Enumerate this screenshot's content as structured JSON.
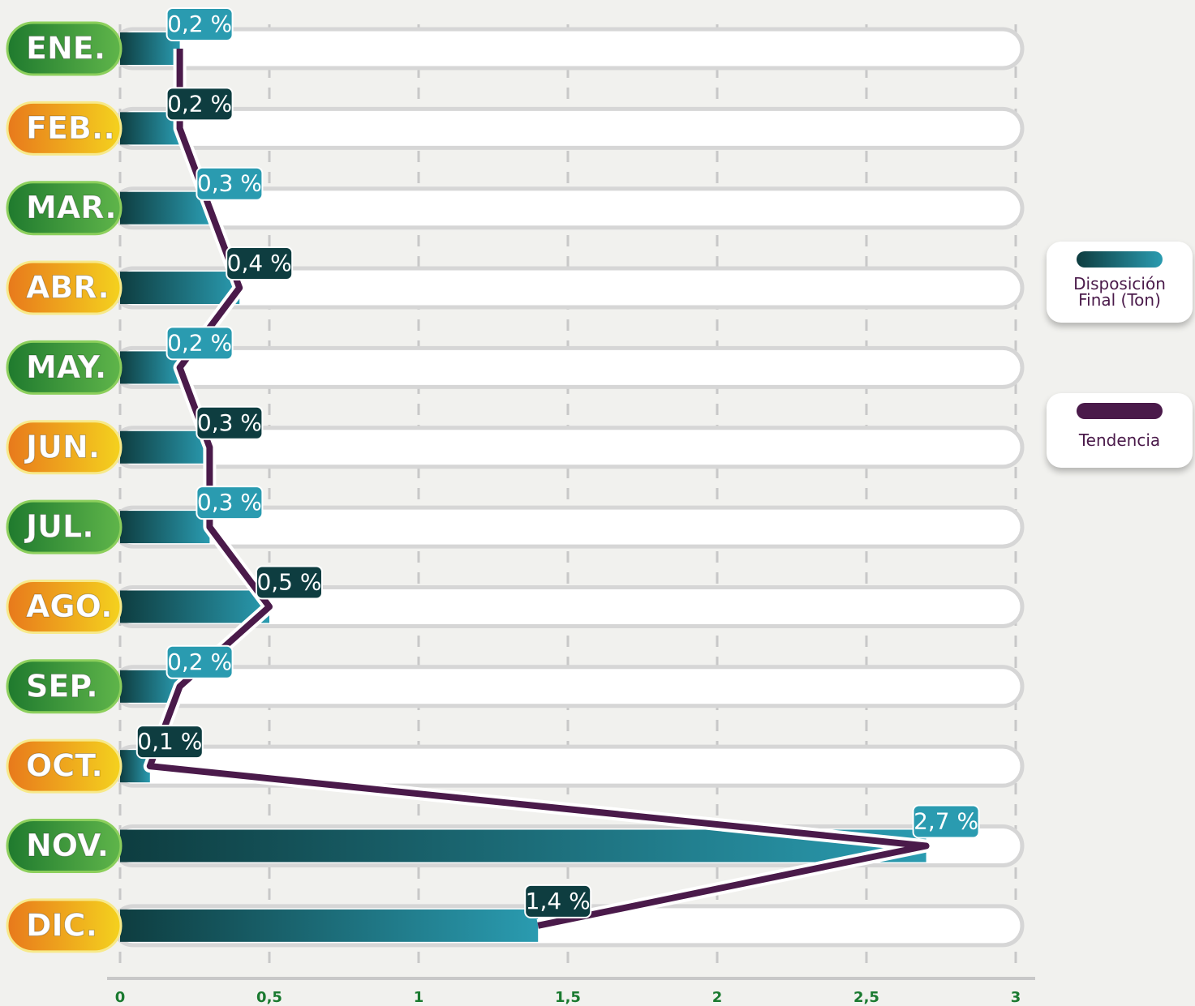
{
  "chart_data": {
    "type": "bar",
    "categories": [
      "ENE.",
      "FEB..",
      "MAR.",
      "ABR.",
      "MAY.",
      "JUN.",
      "JUL.",
      "AGO.",
      "SEP.",
      "OCT.",
      "NOV.",
      "DIC."
    ],
    "series": [
      {
        "name": "Disposición Final (Ton)",
        "type": "bar",
        "color": "#2a9bb0",
        "values": [
          0.2,
          0.2,
          0.3,
          0.4,
          0.2,
          0.3,
          0.3,
          0.5,
          0.2,
          0.1,
          2.7,
          1.4
        ],
        "value_labels": [
          "0,2 %",
          "0,2 %",
          "0,3 %",
          "0,4 %",
          "0,2 %",
          "0,3 %",
          "0,3 %",
          "0,5 %",
          "0,2 %",
          "0,1 %",
          "2,7 %",
          "1,4 %"
        ]
      },
      {
        "name": "Tendencia",
        "type": "line",
        "color": "#4a1a4a",
        "values": [
          0.2,
          0.2,
          0.3,
          0.4,
          0.2,
          0.3,
          0.3,
          0.5,
          0.2,
          0.1,
          2.7,
          1.4
        ]
      }
    ],
    "xlim": [
      0,
      3
    ],
    "xticks": [
      0,
      {
        "value": 0.5,
        "label": "0,5"
      },
      1,
      {
        "value": 1.5,
        "label": "1,5"
      },
      2,
      {
        "value": 2.5,
        "label": "2,5"
      },
      3
    ],
    "grid": true,
    "legend": "right"
  }
}
